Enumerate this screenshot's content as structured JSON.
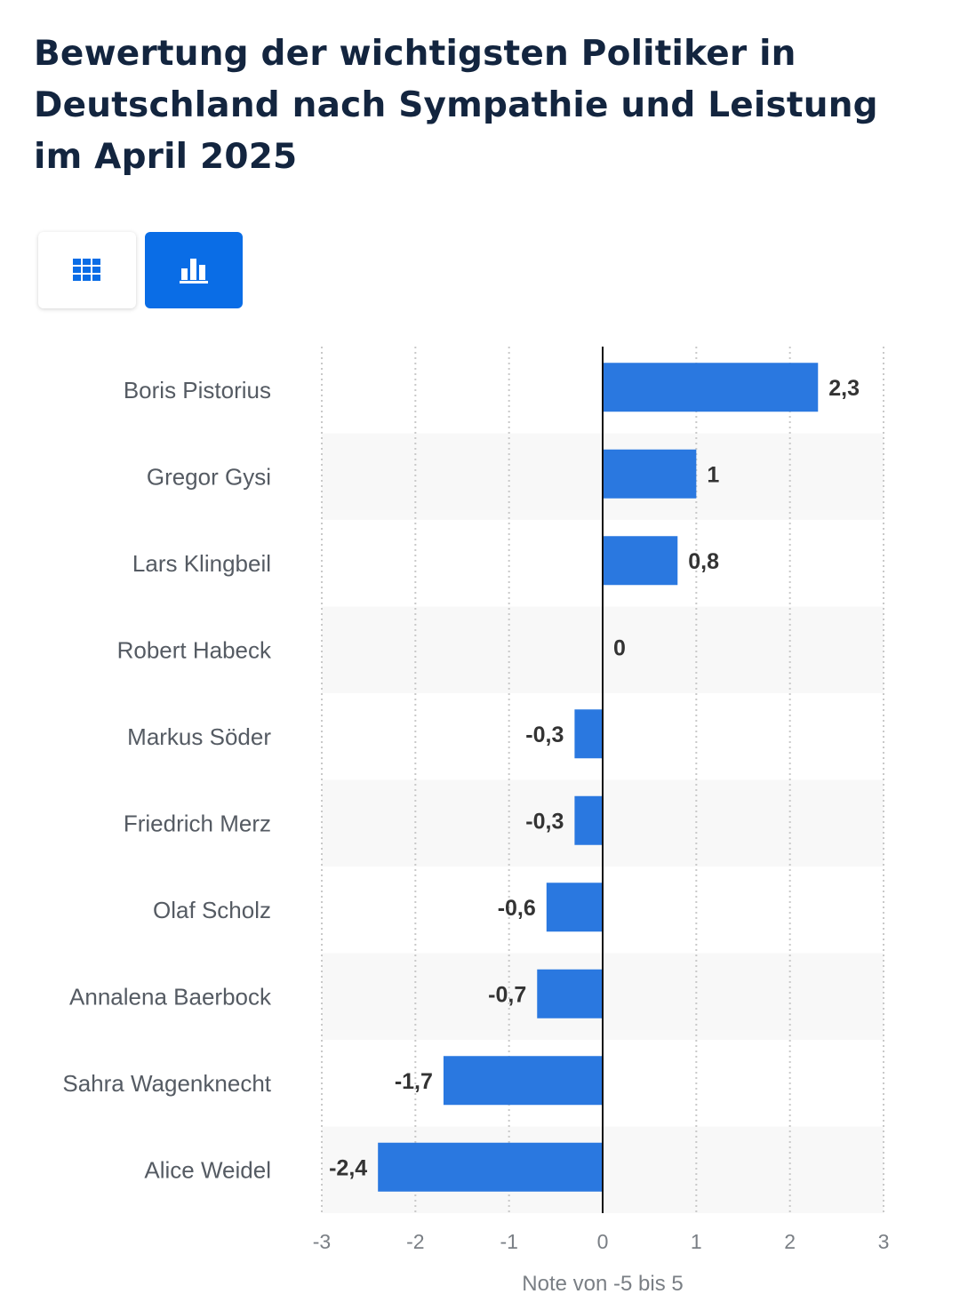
{
  "title": "Bewertung der wichtigsten Politiker in Deutschland nach Sympathie und Leistung im April 2025",
  "view_toggle": {
    "table_icon": "table-grid-icon",
    "chart_icon": "bar-chart-icon",
    "active": "chart",
    "active_color": "#0a6de6"
  },
  "chart_data": {
    "type": "bar",
    "orientation": "horizontal",
    "categories": [
      "Boris Pistorius",
      "Gregor Gysi",
      "Lars Klingbeil",
      "Robert Habeck",
      "Markus Söder",
      "Friedrich Merz",
      "Olaf Scholz",
      "Annalena Baerbock",
      "Sahra Wagenknecht",
      "Alice Weidel"
    ],
    "values": [
      2.3,
      1,
      0.8,
      0,
      -0.3,
      -0.3,
      -0.6,
      -0.7,
      -1.7,
      -2.4
    ],
    "value_labels": [
      "2,3",
      "1",
      "0,8",
      "0",
      "-0,3",
      "-0,3",
      "-0,6",
      "-0,7",
      "-1,7",
      "-2,4"
    ],
    "xlim": [
      -3,
      3
    ],
    "xticks": [
      -3,
      -2,
      -1,
      0,
      1,
      2,
      3
    ],
    "xtick_labels": [
      "-3",
      "-2",
      "-1",
      "0",
      "1",
      "2",
      "3"
    ],
    "xlabel": "Note von -5 bis 5",
    "ylabel": "",
    "grid": true,
    "bar_color": "#2a78e0",
    "zebra_color": "#f8f8f8"
  }
}
